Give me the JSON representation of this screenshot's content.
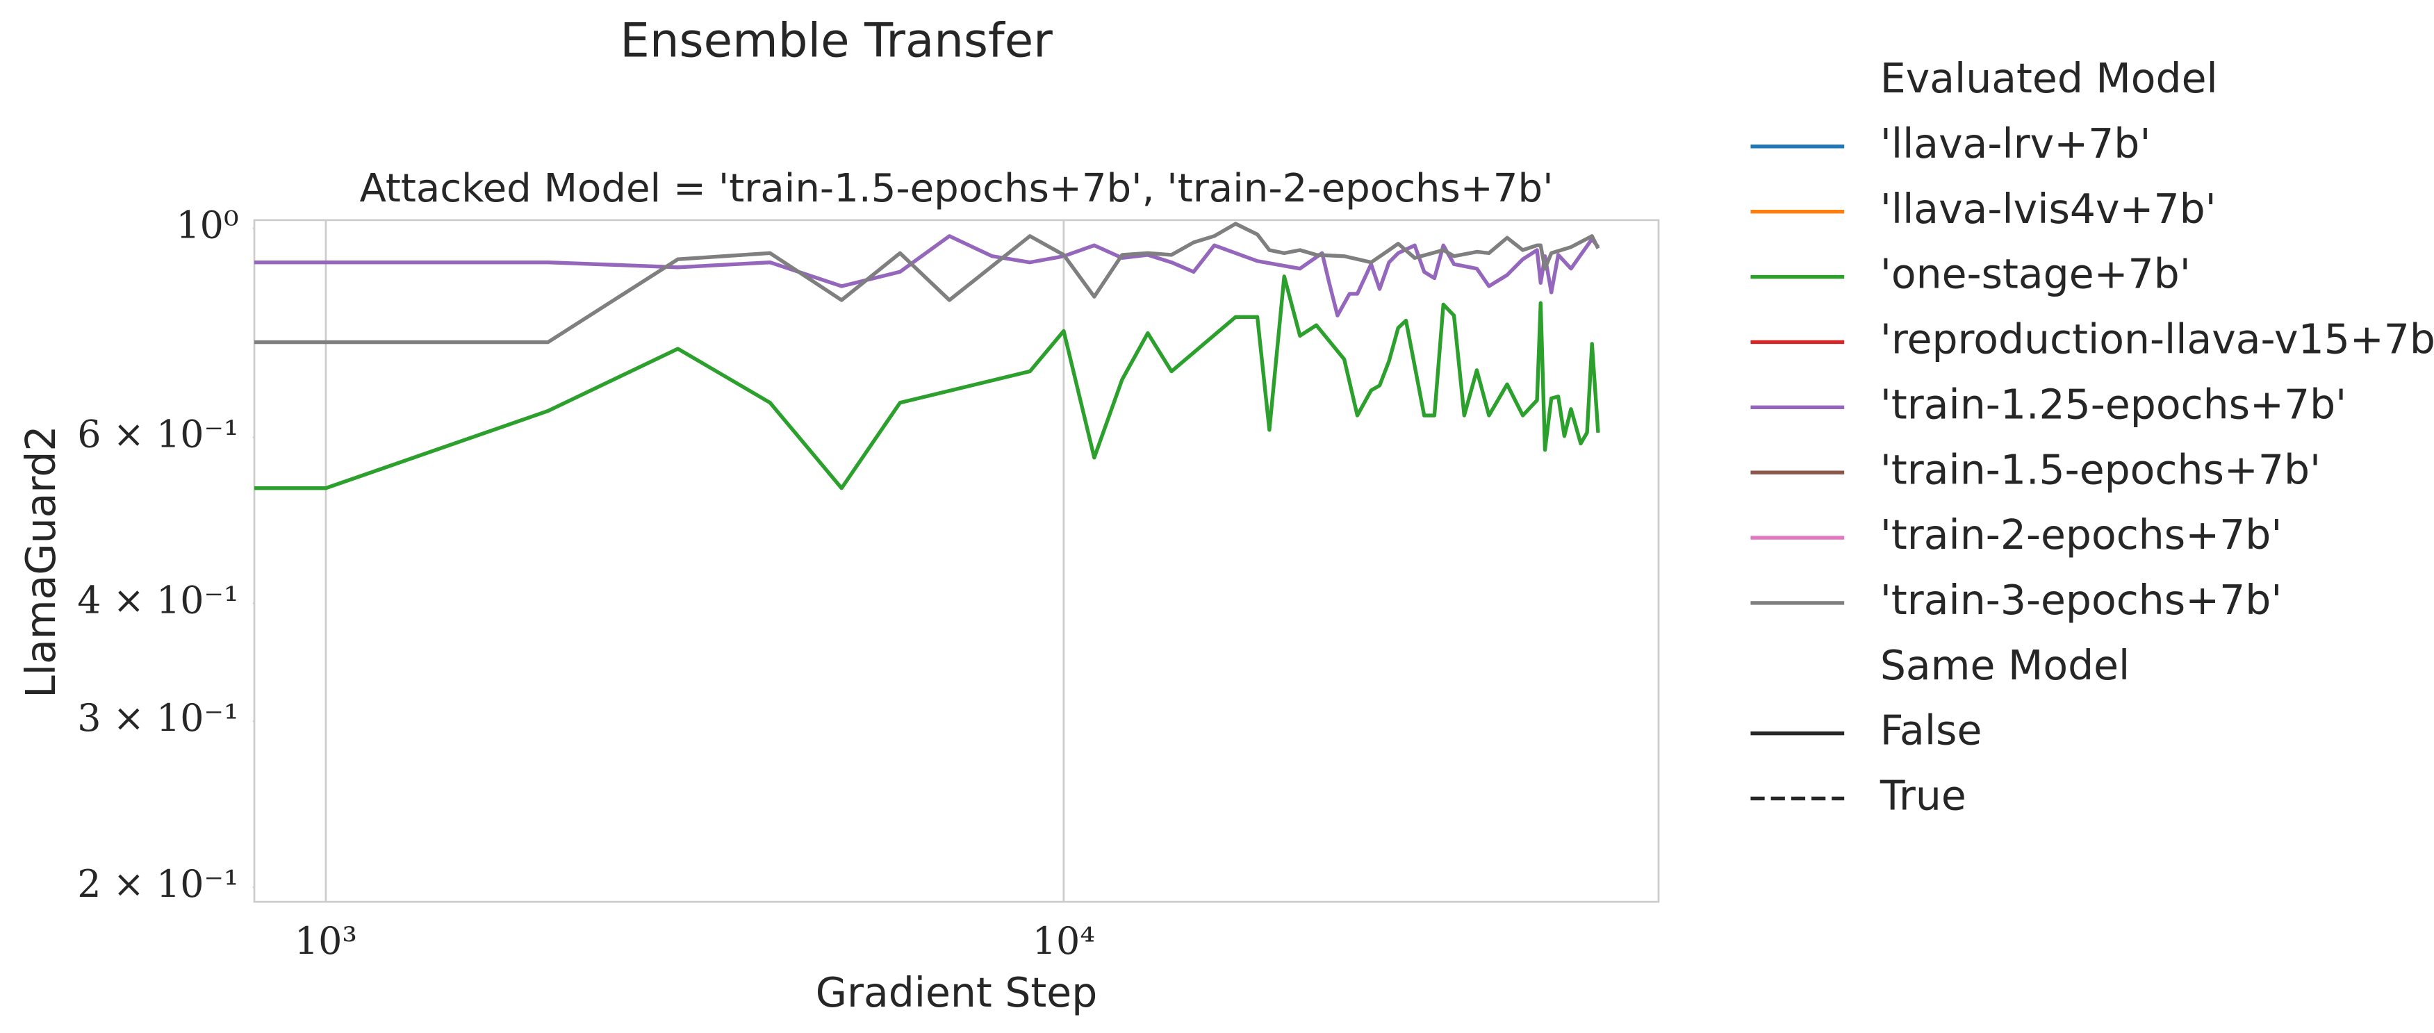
{
  "chart_data": {
    "type": "line",
    "title": "Ensemble Transfer",
    "subtitle": "Attacked Model = 'train-1.5-epochs+7b', 'train-2-epochs+7b'",
    "x_label": "Gradient Step",
    "y_label": "LlamaGuard2",
    "xscale": "log",
    "yscale": "log",
    "xlim": [
      800,
      64000
    ],
    "ylim": [
      0.193,
      1.02
    ],
    "xticks": [
      {
        "value": 1000,
        "label": "10³"
      },
      {
        "value": 10000,
        "label": "10⁴"
      }
    ],
    "yticks": [
      {
        "value": 1,
        "label": "10⁰"
      },
      {
        "value": 0.6,
        "label": "6 × 10⁻¹"
      },
      {
        "value": 0.4,
        "label": "4 × 10⁻¹"
      },
      {
        "value": 0.3,
        "label": "3 × 10⁻¹"
      },
      {
        "value": 0.2,
        "label": "2 × 10⁻¹"
      }
    ],
    "grid": "x",
    "legend": {
      "position": "outside right",
      "title": "Evaluated Model",
      "style_title": "Same Model",
      "style_color": "#262626",
      "styles": [
        {
          "name": "False",
          "dash": false
        },
        {
          "name": "True",
          "dash": true
        }
      ]
    },
    "series": [
      {
        "name": "'llava-lrv+7b'",
        "color": "#1f77b4",
        "x": [],
        "values": []
      },
      {
        "name": "'llava-lvis4v+7b'",
        "color": "#ff7f0e",
        "x": [],
        "values": []
      },
      {
        "name": "'one-stage+7b'",
        "color": "#2ca02c",
        "x": [
          800,
          1000,
          2000,
          3000,
          4000,
          5000,
          6000,
          9000,
          10000,
          11000,
          12000,
          13000,
          14000,
          17100,
          18300,
          19000,
          19900,
          20900,
          22000,
          24000,
          25000,
          26100,
          26800,
          27600,
          28400,
          29100,
          30800,
          31800,
          32700,
          33800,
          34900,
          36300,
          37700,
          39900,
          41900,
          43800,
          44300,
          44900,
          45800,
          46800,
          47700,
          48700,
          50200,
          51200,
          52000,
          53000
        ],
        "values": [
          0.53,
          0.53,
          0.64,
          0.745,
          0.653,
          0.53,
          0.653,
          0.705,
          0.778,
          0.571,
          0.691,
          0.774,
          0.705,
          0.805,
          0.805,
          0.611,
          0.889,
          0.769,
          0.789,
          0.726,
          0.633,
          0.673,
          0.681,
          0.723,
          0.784,
          0.798,
          0.633,
          0.633,
          0.83,
          0.808,
          0.633,
          0.707,
          0.633,
          0.683,
          0.633,
          0.657,
          0.833,
          0.582,
          0.66,
          0.663,
          0.602,
          0.643,
          0.591,
          0.607,
          0.754,
          0.607
        ]
      },
      {
        "name": "'reproduction-llava-v15+7b'",
        "color": "#d62728",
        "x": [],
        "values": []
      },
      {
        "name": "'train-1.25-epochs+7b'",
        "color": "#9467bd",
        "x": [
          800,
          1000,
          2000,
          3000,
          4000,
          5000,
          6000,
          7000,
          8000,
          9000,
          10000,
          11000,
          12000,
          13000,
          14000,
          15000,
          16000,
          17100,
          18300,
          20900,
          22400,
          22900,
          23500,
          24400,
          25000,
          26100,
          26800,
          27600,
          28400,
          29900,
          30800,
          31800,
          32700,
          33800,
          36300,
          37700,
          39900,
          41900,
          43800,
          44300,
          44900,
          45800,
          46800,
          48700,
          50200,
          52000,
          53000
        ],
        "values": [
          0.92,
          0.92,
          0.92,
          0.909,
          0.92,
          0.868,
          0.899,
          0.981,
          0.934,
          0.92,
          0.934,
          0.959,
          0.93,
          0.937,
          0.92,
          0.899,
          0.959,
          0.941,
          0.923,
          0.906,
          0.941,
          0.875,
          0.808,
          0.852,
          0.852,
          0.916,
          0.862,
          0.92,
          0.941,
          0.959,
          0.899,
          0.885,
          0.959,
          0.916,
          0.906,
          0.868,
          0.892,
          0.927,
          0.948,
          0.875,
          0.934,
          0.855,
          0.937,
          0.906,
          0.937,
          0.974,
          0.955
        ]
      },
      {
        "name": "'train-1.5-epochs+7b'",
        "color": "#8c564b",
        "x": [],
        "values": []
      },
      {
        "name": "'train-2-epochs+7b'",
        "color": "#e377c2",
        "x": [],
        "values": []
      },
      {
        "name": "'train-3-epochs+7b'",
        "color": "#7f7f7f",
        "x": [
          800,
          1000,
          2000,
          3000,
          4000,
          5000,
          6000,
          7000,
          9000,
          10000,
          11000,
          12000,
          13000,
          14000,
          15000,
          16000,
          17100,
          18300,
          19000,
          19900,
          20900,
          22000,
          24000,
          26100,
          27600,
          28400,
          29900,
          32700,
          33800,
          36300,
          37700,
          39900,
          41900,
          43800,
          44300,
          44900,
          45800,
          48700,
          52000,
          53000
        ],
        "values": [
          0.757,
          0.757,
          0.757,
          0.927,
          0.941,
          0.839,
          0.941,
          0.839,
          0.981,
          0.937,
          0.846,
          0.937,
          0.941,
          0.937,
          0.966,
          0.981,
          1.011,
          0.985,
          0.948,
          0.941,
          0.948,
          0.937,
          0.934,
          0.92,
          0.948,
          0.963,
          0.93,
          0.948,
          0.934,
          0.944,
          0.941,
          0.977,
          0.948,
          0.959,
          0.959,
          0.906,
          0.941,
          0.955,
          0.981,
          0.952
        ]
      }
    ]
  }
}
